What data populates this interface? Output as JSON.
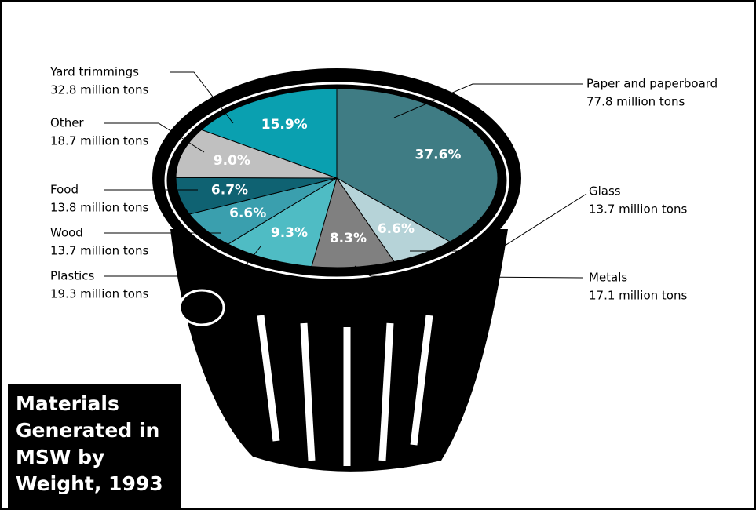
{
  "chart_data": {
    "type": "pie",
    "title": "Materials Generated in MSW by Weight, 1993",
    "categories": [
      "Paper and paperboard",
      "Glass",
      "Metals",
      "Plastics",
      "Wood",
      "Food",
      "Other",
      "Yard trimmings"
    ],
    "details": [
      "77.8 million tons",
      "13.7 million tons",
      "17.1 million tons",
      "19.3 million tons",
      "13.7 million tons",
      "13.8 million tons",
      "18.7 million tons",
      "32.8 million tons"
    ],
    "values": [
      37.6,
      6.6,
      8.3,
      9.3,
      6.6,
      6.7,
      9.0,
      15.9
    ],
    "value_labels": [
      "37.6%",
      "6.6%",
      "8.3%",
      "9.3%",
      "6.6%",
      "6.7%",
      "9.0%",
      "15.9%"
    ],
    "colors": [
      "#3f7c84",
      "#b6d3d8",
      "#808080",
      "#4fbcc4",
      "#3a9fae",
      "#0f6272",
      "#c0c0c0",
      "#0aa0b0"
    ]
  }
}
